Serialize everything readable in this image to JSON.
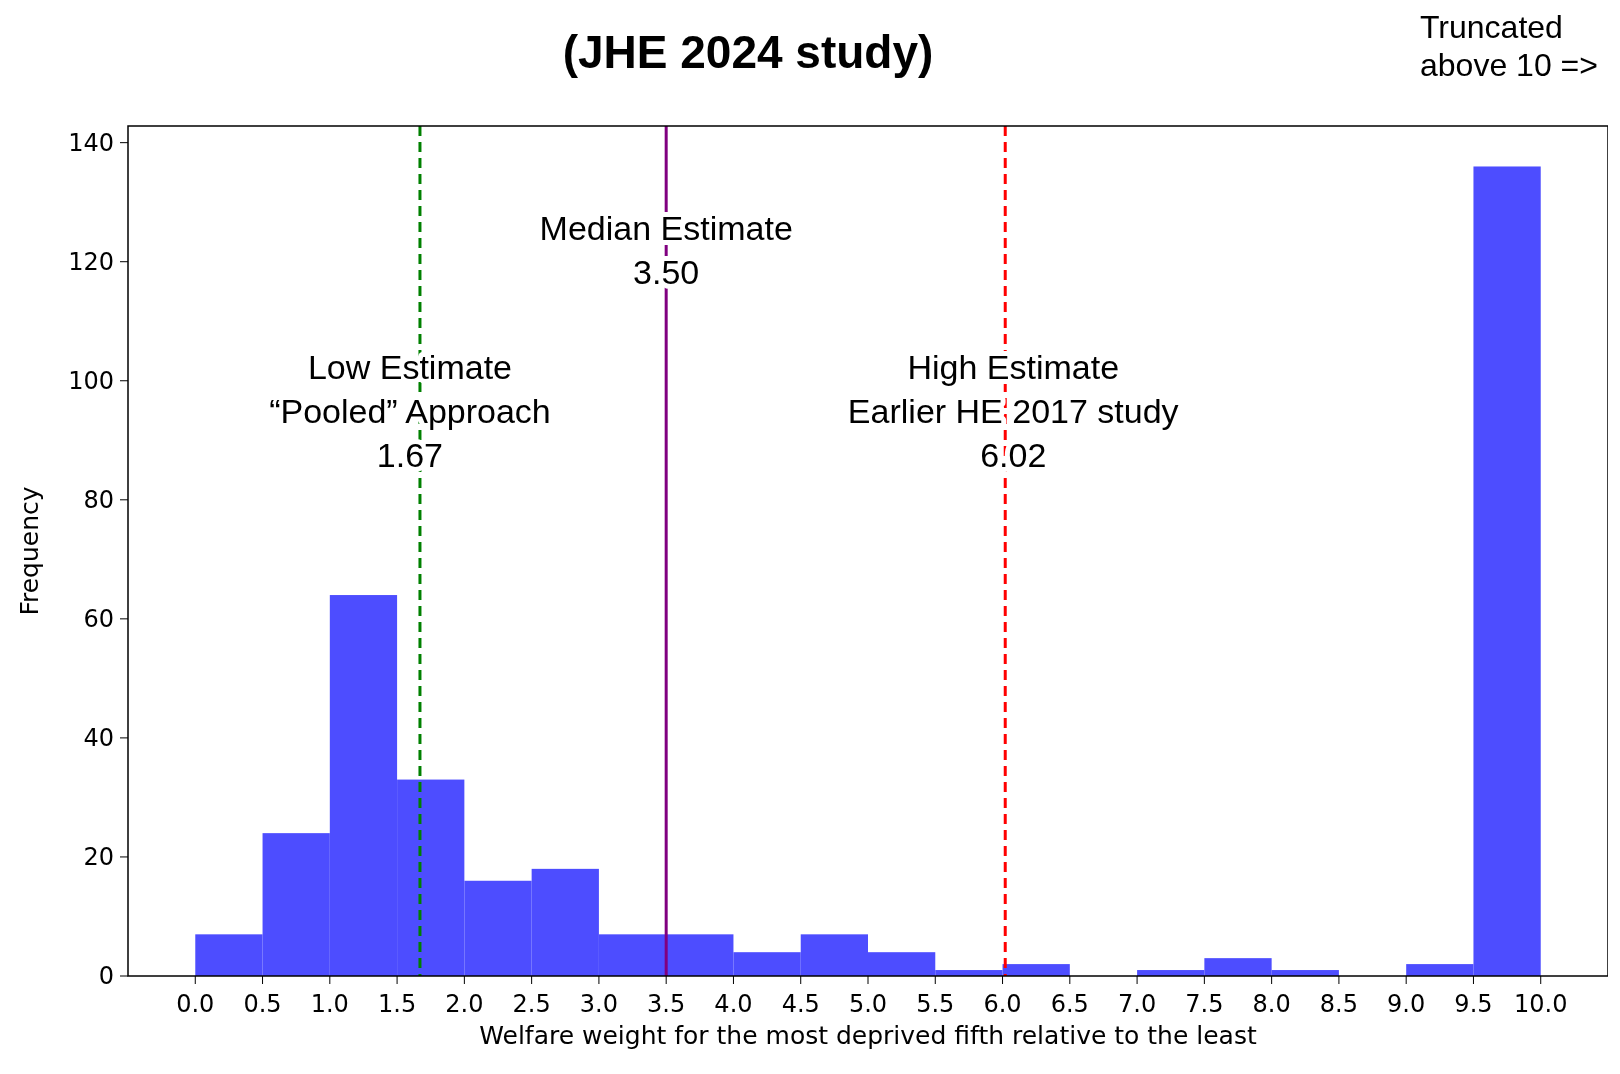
{
  "chart_data": {
    "type": "histogram",
    "title": "(JHE 2024 study)",
    "xlabel": "Welfare weight for the most deprived fifth relative to the least",
    "ylabel": "Frequency",
    "bins": [
      0,
      0.5,
      1,
      1.5,
      2,
      2.5,
      3,
      3.5,
      4,
      4.5,
      5,
      5.5,
      6,
      6.5,
      7,
      7.5,
      8,
      8.5,
      9,
      9.5,
      10
    ],
    "values": [
      7,
      24,
      64,
      33,
      16,
      18,
      7,
      7,
      4,
      7,
      4,
      1,
      2,
      0,
      1,
      3,
      1,
      0,
      2,
      136
    ],
    "color": "#4d4dff",
    "xlim": [
      -0.5,
      10.5
    ],
    "xticks": [
      {
        "value": 0,
        "label": "0.0"
      },
      {
        "value": 0.5,
        "label": "0.5"
      },
      {
        "value": 1,
        "label": "1.0"
      },
      {
        "value": 1.5,
        "label": "1.5"
      },
      {
        "value": 2,
        "label": "2.0"
      },
      {
        "value": 2.5,
        "label": "2.5"
      },
      {
        "value": 3,
        "label": "3.0"
      },
      {
        "value": 3.5,
        "label": "3.5"
      },
      {
        "value": 4,
        "label": "4.0"
      },
      {
        "value": 4.5,
        "label": "4.5"
      },
      {
        "value": 5,
        "label": "5.0"
      },
      {
        "value": 5.5,
        "label": "5.5"
      },
      {
        "value": 6,
        "label": "6.0"
      },
      {
        "value": 6.5,
        "label": "6.5"
      },
      {
        "value": 7,
        "label": "7.0"
      },
      {
        "value": 7.5,
        "label": "7.5"
      },
      {
        "value": 8,
        "label": "8.0"
      },
      {
        "value": 8.5,
        "label": "8.5"
      },
      {
        "value": 9,
        "label": "9.0"
      },
      {
        "value": 9.5,
        "label": "9.5"
      },
      {
        "value": 10,
        "label": "10.0"
      }
    ],
    "ylim": [
      0,
      142.8
    ],
    "yticks": [
      0,
      20,
      40,
      60,
      80,
      100,
      120,
      140
    ],
    "ref_lines": [
      {
        "axis": "x",
        "value": 1.67,
        "label": "Low Estimate\n“Pooled” Approach\n1.67",
        "color": "#008000",
        "line_style": "dashed"
      },
      {
        "axis": "x",
        "value": 3.5,
        "label": "Median Estimate\n3.50",
        "color": "#800080",
        "line_style": "solid"
      },
      {
        "axis": "x",
        "value": 6.02,
        "label": "High Estimate\nEarlier HE 2017 study\n6.02",
        "color": "#ff0000",
        "line_style": "dashed"
      }
    ],
    "annotations": [
      "Truncated\nabove 10 =>"
    ],
    "grid": false
  }
}
